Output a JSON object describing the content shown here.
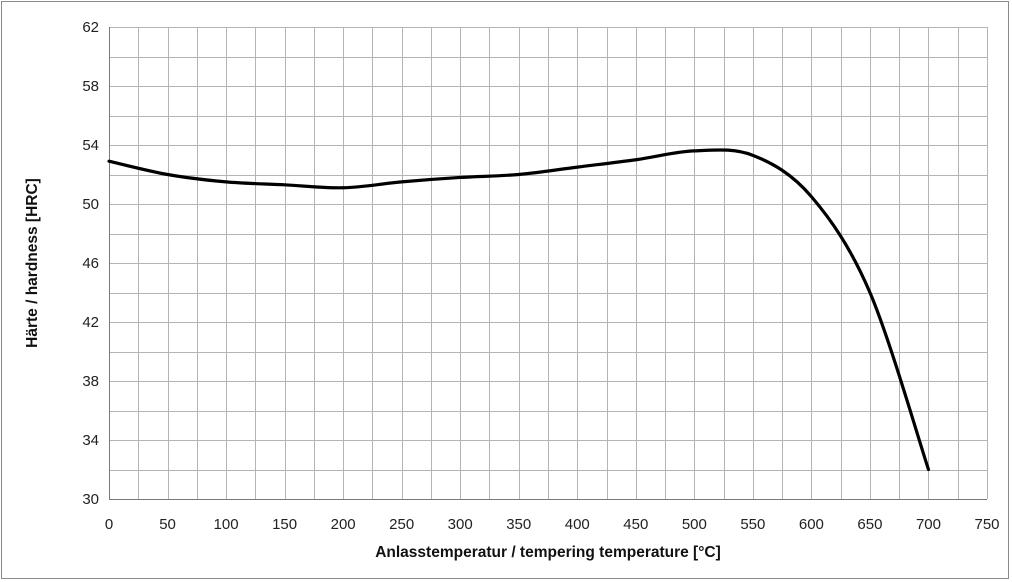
{
  "chart_data": {
    "type": "line",
    "title": "",
    "xlabel": "Anlasstemperatur / tempering temperature [°C]",
    "ylabel": "Härte / hardness [HRC]",
    "xlim": [
      0,
      750
    ],
    "ylim": [
      30,
      62
    ],
    "x_ticks": [
      0,
      50,
      100,
      150,
      200,
      250,
      300,
      350,
      400,
      450,
      500,
      550,
      600,
      650,
      700,
      750
    ],
    "y_ticks": [
      30,
      34,
      38,
      42,
      46,
      50,
      54,
      58,
      62
    ],
    "x_minor_step": 25,
    "y_minor_step": 2,
    "grid": true,
    "legend": "none",
    "line_color": "#000000",
    "series": [
      {
        "x": [
          0,
          50,
          100,
          150,
          200,
          250,
          300,
          350,
          400,
          450,
          500,
          550,
          600,
          650,
          700
        ],
        "y": [
          52.9,
          52.0,
          51.5,
          51.3,
          51.1,
          51.5,
          51.8,
          52.0,
          52.5,
          53.0,
          53.6,
          53.3,
          50.5,
          44.0,
          32.0
        ]
      }
    ]
  }
}
